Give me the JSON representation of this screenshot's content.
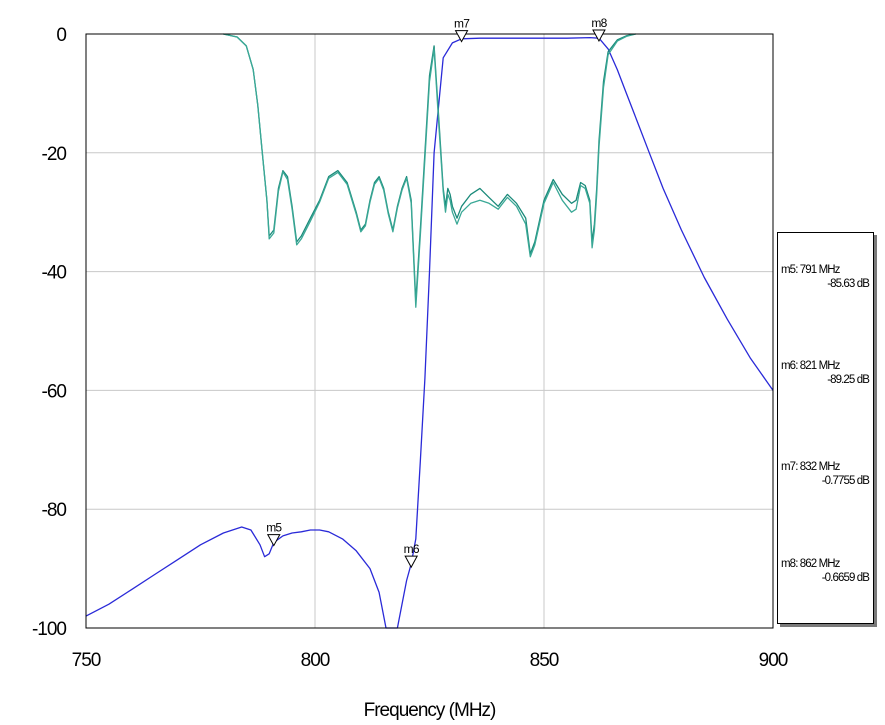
{
  "chart_data": {
    "type": "line",
    "xlabel": "Frequency (MHz)",
    "ylabel": "",
    "xlim": [
      750,
      900
    ],
    "ylim": [
      -100,
      0
    ],
    "x_ticks": [
      "750",
      "800",
      "850",
      "900"
    ],
    "y_ticks": [
      "0",
      "-20",
      "-40",
      "-60",
      "-80",
      "-100"
    ],
    "grid": true,
    "colors": {
      "blue": "#2a2ad8",
      "teal_a": "#1a8a7a",
      "teal_b": "#3aa896",
      "grid": "#c8c8c8"
    },
    "series": [
      {
        "color": "#2a2ad8",
        "x": [
          750,
          755,
          760,
          765,
          770,
          775,
          780,
          784,
          786,
          788,
          789,
          790,
          791,
          793,
          795,
          797,
          799,
          801,
          803,
          806,
          809,
          812,
          814,
          815.5,
          818,
          819,
          820,
          821,
          822,
          823,
          824,
          825,
          826,
          828,
          830,
          832,
          836,
          840,
          845,
          850,
          855,
          860,
          862,
          864,
          866,
          868,
          870,
          873,
          876,
          880,
          885,
          890,
          895,
          900
        ],
        "y": [
          -98,
          -96,
          -93.5,
          -91,
          -88.5,
          -86,
          -84,
          -83,
          -83.5,
          -86,
          -88,
          -87.5,
          -85.6,
          -84.5,
          -84,
          -83.8,
          -83.5,
          -83.5,
          -83.8,
          -85,
          -87,
          -90,
          -94,
          -100,
          -100,
          -96,
          -92,
          -89.2,
          -85,
          -72,
          -58,
          -40,
          -20,
          -4,
          -1.5,
          -0.8,
          -0.7,
          -0.7,
          -0.7,
          -0.7,
          -0.7,
          -0.6,
          -0.7,
          -2.5,
          -6,
          -10,
          -14,
          -20,
          -26,
          -33,
          -41,
          -48,
          -54.5,
          -60
        ]
      },
      {
        "color": "#1a8a7a",
        "x": [
          780,
          783,
          785,
          786.5,
          787.5,
          788.5,
          789.5,
          790,
          791,
          792,
          793,
          794,
          795,
          796,
          797,
          799,
          801,
          803,
          805,
          807,
          809,
          810,
          811,
          812,
          813,
          814,
          815,
          816,
          817,
          818,
          819,
          820,
          821,
          822,
          823,
          824,
          825,
          826,
          827,
          828,
          828.5,
          829,
          829.5,
          830,
          831,
          832,
          834,
          836,
          838,
          840,
          842,
          844,
          846,
          847,
          848,
          850,
          852,
          854,
          856,
          857,
          858,
          859,
          860,
          860.5,
          861,
          861.5,
          862,
          863,
          864,
          866,
          868,
          870
        ],
        "y": [
          0,
          -0.5,
          -2,
          -6,
          -12,
          -20,
          -28,
          -34,
          -33,
          -26,
          -23,
          -24,
          -29,
          -35,
          -34,
          -31,
          -28,
          -24,
          -23,
          -25,
          -30,
          -33,
          -32,
          -28,
          -25,
          -24,
          -26,
          -30,
          -33,
          -29,
          -26,
          -24,
          -28,
          -45,
          -33,
          -20,
          -7,
          -2,
          -14,
          -26,
          -29,
          -26,
          -27,
          -29,
          -31,
          -29,
          -27,
          -26,
          -27.5,
          -29,
          -27,
          -28.5,
          -31,
          -37,
          -35,
          -28,
          -24.5,
          -27,
          -28.5,
          -28,
          -25,
          -25.5,
          -28,
          -35,
          -32,
          -26,
          -18,
          -8,
          -3,
          -1,
          -0.3,
          0
        ]
      },
      {
        "color": "#3aa896",
        "x": [
          780,
          783,
          785,
          786.5,
          787.5,
          788.5,
          789.5,
          790,
          791,
          792,
          793,
          794,
          795,
          796,
          797,
          799,
          801,
          803,
          805,
          807,
          809,
          810,
          811,
          812,
          813,
          814,
          815,
          816,
          817,
          818,
          819,
          820,
          821,
          822,
          823,
          824,
          825,
          826,
          827,
          828,
          828.5,
          829,
          829.5,
          830,
          831,
          832,
          834,
          836,
          838,
          840,
          842,
          844,
          846,
          847,
          848,
          850,
          852,
          854,
          856,
          857,
          858,
          859,
          860,
          860.5,
          861,
          861.5,
          862,
          863,
          864,
          866,
          868,
          870
        ],
        "y": [
          0,
          -0.5,
          -2,
          -6,
          -12,
          -20,
          -28,
          -34.5,
          -33.5,
          -26.5,
          -23.2,
          -24.5,
          -29.5,
          -35.5,
          -34.5,
          -31.5,
          -28.3,
          -24.3,
          -23.3,
          -25.3,
          -30.3,
          -33.3,
          -32.3,
          -28.3,
          -25.3,
          -24.3,
          -26.3,
          -30.3,
          -33.3,
          -29.3,
          -26.3,
          -24.3,
          -28.5,
          -46,
          -34,
          -21,
          -8,
          -2.5,
          -15,
          -26.5,
          -30,
          -27,
          -28,
          -30,
          -32,
          -30,
          -28.5,
          -28,
          -28.5,
          -29.5,
          -27.5,
          -29,
          -32,
          -37.5,
          -35.5,
          -28.5,
          -25,
          -28,
          -30,
          -29.5,
          -25.5,
          -26,
          -28.5,
          -36,
          -33,
          -27,
          -19,
          -9,
          -3.5,
          -1.2,
          -0.4,
          0
        ]
      }
    ],
    "markers": [
      {
        "name": "m5",
        "x": 791,
        "y": -85.63,
        "freq_text": "791 MHz",
        "value_text": "-85.63 dB"
      },
      {
        "name": "m6",
        "x": 821,
        "y": -89.25,
        "freq_text": "821 MHz",
        "value_text": "-89.25 dB"
      },
      {
        "name": "m7",
        "x": 832,
        "y": -0.7755,
        "freq_text": "832 MHz",
        "value_text": "-0.7755 dB"
      },
      {
        "name": "m8",
        "x": 862,
        "y": -0.6659,
        "freq_text": "862 MHz",
        "value_text": "-0.6659 dB"
      }
    ]
  }
}
